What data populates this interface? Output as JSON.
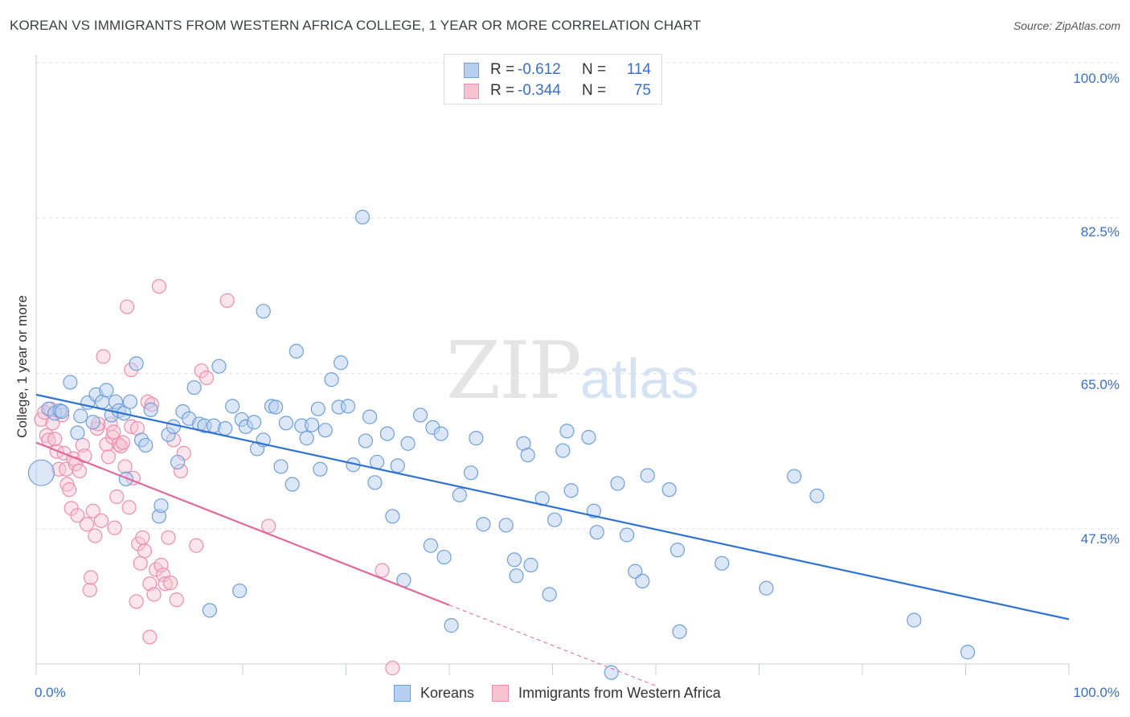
{
  "title": "KOREAN VS IMMIGRANTS FROM WESTERN AFRICA COLLEGE, 1 YEAR OR MORE CORRELATION CHART",
  "source": "Source: ZipAtlas.com",
  "watermark": {
    "zip": "ZIP",
    "atlas": "atlas"
  },
  "legend_top": {
    "rows": [
      {
        "r_label": "R =",
        "r_value": "-0.612",
        "n_label": "N =",
        "n_value": "114"
      },
      {
        "r_label": "R =",
        "r_value": "-0.344",
        "n_label": "N =",
        "n_value": "75"
      }
    ]
  },
  "legend_bottom": [
    "Koreans",
    "Immigrants from Western Africa"
  ],
  "y_axis_label": "College, 1 year or more",
  "y_ticks": [
    "100.0%",
    "82.5%",
    "65.0%",
    "47.5%"
  ],
  "x_ticks": [
    "0.0%",
    "100.0%"
  ],
  "colors": {
    "koreans_fill": "#b7d0f0",
    "koreans_stroke": "#6f9fd8",
    "koreans_line": "#2f72d0",
    "wafrica_fill": "#f7c3d3",
    "wafrica_stroke": "#ec8eae",
    "wafrica_line": "#e0679a",
    "grid": "#dde2ea",
    "tick_text": "#3a6fc4"
  },
  "chart_data": {
    "type": "scatter",
    "title": "KOREAN VS IMMIGRANTS FROM WESTERN AFRICA COLLEGE, 1 YEAR OR MORE CORRELATION CHART",
    "xlabel": "",
    "ylabel": "College, 1 year or more",
    "xlim": [
      0,
      100
    ],
    "ylim": [
      30,
      100
    ],
    "y_gridlines": [
      47.5,
      65.0,
      82.5,
      100.0
    ],
    "series": [
      {
        "name": "Koreans",
        "R": -0.612,
        "N": 114,
        "trend": {
          "x": [
            0,
            100
          ],
          "y": [
            62.6,
            37.3
          ]
        },
        "points": [
          [
            0.5,
            53.8
          ],
          [
            1.2,
            61.0
          ],
          [
            1.8,
            60.5
          ],
          [
            2.3,
            60.8
          ],
          [
            2.5,
            60.7
          ],
          [
            3.3,
            64.0
          ],
          [
            4.0,
            58.3
          ],
          [
            4.3,
            60.2
          ],
          [
            5.0,
            61.7
          ],
          [
            5.5,
            59.5
          ],
          [
            5.8,
            62.6
          ],
          [
            6.4,
            61.8
          ],
          [
            6.8,
            63.1
          ],
          [
            7.3,
            60.3
          ],
          [
            7.7,
            61.8
          ],
          [
            8.0,
            60.8
          ],
          [
            8.5,
            60.5
          ],
          [
            8.7,
            53.1
          ],
          [
            9.1,
            61.8
          ],
          [
            9.7,
            66.1
          ],
          [
            10.2,
            57.5
          ],
          [
            10.6,
            56.9
          ],
          [
            11.1,
            60.9
          ],
          [
            11.9,
            48.9
          ],
          [
            12.1,
            50.1
          ],
          [
            12.8,
            58.1
          ],
          [
            13.3,
            59.0
          ],
          [
            13.7,
            55.0
          ],
          [
            14.2,
            60.7
          ],
          [
            14.8,
            59.9
          ],
          [
            15.3,
            63.4
          ],
          [
            15.8,
            59.3
          ],
          [
            16.3,
            59.1
          ],
          [
            16.8,
            38.3
          ],
          [
            17.2,
            59.1
          ],
          [
            17.7,
            65.8
          ],
          [
            18.3,
            58.8
          ],
          [
            19.0,
            61.3
          ],
          [
            19.7,
            40.5
          ],
          [
            19.9,
            59.8
          ],
          [
            20.3,
            59.0
          ],
          [
            21.1,
            59.5
          ],
          [
            21.4,
            56.5
          ],
          [
            22.0,
            57.5
          ],
          [
            22.0,
            72.0
          ],
          [
            22.8,
            61.3
          ],
          [
            23.2,
            61.2
          ],
          [
            23.7,
            54.5
          ],
          [
            24.2,
            59.4
          ],
          [
            24.8,
            52.5
          ],
          [
            25.2,
            67.5
          ],
          [
            25.7,
            59.1
          ],
          [
            26.2,
            57.7
          ],
          [
            26.7,
            59.2
          ],
          [
            27.3,
            61.0
          ],
          [
            27.5,
            54.2
          ],
          [
            28.0,
            58.6
          ],
          [
            28.6,
            64.3
          ],
          [
            29.3,
            61.2
          ],
          [
            29.5,
            66.2
          ],
          [
            30.2,
            61.3
          ],
          [
            30.7,
            54.7
          ],
          [
            31.6,
            82.6
          ],
          [
            31.9,
            57.4
          ],
          [
            32.3,
            60.1
          ],
          [
            32.8,
            52.7
          ],
          [
            33.0,
            55.0
          ],
          [
            34.0,
            58.2
          ],
          [
            34.5,
            48.9
          ],
          [
            35.0,
            54.6
          ],
          [
            35.6,
            41.7
          ],
          [
            36.0,
            57.1
          ],
          [
            37.2,
            60.3
          ],
          [
            38.2,
            45.6
          ],
          [
            38.4,
            58.9
          ],
          [
            39.2,
            58.2
          ],
          [
            39.5,
            44.3
          ],
          [
            40.2,
            36.6
          ],
          [
            41.0,
            51.3
          ],
          [
            42.1,
            53.8
          ],
          [
            42.6,
            57.7
          ],
          [
            43.3,
            48.0
          ],
          [
            45.5,
            47.9
          ],
          [
            46.3,
            44.0
          ],
          [
            46.5,
            42.2
          ],
          [
            47.2,
            57.1
          ],
          [
            47.6,
            55.8
          ],
          [
            47.9,
            43.4
          ],
          [
            49.0,
            50.9
          ],
          [
            49.7,
            40.1
          ],
          [
            50.2,
            48.5
          ],
          [
            51.0,
            56.3
          ],
          [
            51.4,
            58.5
          ],
          [
            51.8,
            51.8
          ],
          [
            53.5,
            57.8
          ],
          [
            54.0,
            49.5
          ],
          [
            54.3,
            47.1
          ],
          [
            56.3,
            52.6
          ],
          [
            57.2,
            46.8
          ],
          [
            58.0,
            42.7
          ],
          [
            58.7,
            41.6
          ],
          [
            59.2,
            53.5
          ],
          [
            61.3,
            51.9
          ],
          [
            62.1,
            45.1
          ],
          [
            62.3,
            35.9
          ],
          [
            66.4,
            43.6
          ],
          [
            70.7,
            40.8
          ],
          [
            73.4,
            53.4
          ],
          [
            75.6,
            51.2
          ],
          [
            85.0,
            37.2
          ],
          [
            90.2,
            33.6
          ],
          [
            55.7,
            31.3
          ]
        ]
      },
      {
        "name": "Immigrants from Western Africa",
        "R": -0.344,
        "N": 75,
        "trend": {
          "x": [
            0,
            40.0
          ],
          "y": [
            57.2,
            38.9
          ]
        },
        "trend_extension": {
          "x": [
            40.0,
            60.0
          ],
          "y": [
            38.9,
            29.8
          ]
        },
        "points": [
          [
            0.5,
            59.8
          ],
          [
            0.8,
            60.6
          ],
          [
            1.0,
            58.0
          ],
          [
            1.2,
            57.5
          ],
          [
            1.4,
            61.0
          ],
          [
            1.6,
            59.4
          ],
          [
            1.8,
            57.6
          ],
          [
            2.0,
            56.2
          ],
          [
            2.2,
            54.2
          ],
          [
            2.5,
            60.3
          ],
          [
            2.7,
            56.0
          ],
          [
            2.9,
            54.2
          ],
          [
            3.0,
            52.5
          ],
          [
            3.2,
            51.9
          ],
          [
            3.4,
            49.8
          ],
          [
            3.6,
            55.4
          ],
          [
            3.8,
            54.8
          ],
          [
            4.0,
            49.0
          ],
          [
            4.2,
            54.0
          ],
          [
            4.5,
            56.9
          ],
          [
            4.7,
            55.7
          ],
          [
            4.9,
            48.0
          ],
          [
            5.2,
            40.6
          ],
          [
            5.5,
            49.5
          ],
          [
            5.7,
            46.7
          ],
          [
            5.9,
            58.8
          ],
          [
            6.0,
            59.3
          ],
          [
            6.3,
            48.4
          ],
          [
            6.5,
            66.9
          ],
          [
            6.8,
            57.0
          ],
          [
            7.0,
            55.6
          ],
          [
            7.2,
            59.3
          ],
          [
            7.4,
            57.8
          ],
          [
            7.6,
            47.6
          ],
          [
            7.8,
            51.1
          ],
          [
            8.0,
            57.0
          ],
          [
            8.2,
            56.8
          ],
          [
            8.4,
            57.2
          ],
          [
            8.6,
            54.5
          ],
          [
            8.8,
            72.5
          ],
          [
            9.0,
            49.9
          ],
          [
            9.2,
            59.0
          ],
          [
            9.4,
            53.2
          ],
          [
            9.7,
            39.3
          ],
          [
            9.9,
            45.8
          ],
          [
            10.1,
            43.6
          ],
          [
            10.3,
            46.5
          ],
          [
            10.5,
            45.0
          ],
          [
            10.8,
            61.8
          ],
          [
            11.0,
            41.3
          ],
          [
            11.2,
            61.5
          ],
          [
            11.4,
            40.1
          ],
          [
            11.6,
            42.9
          ],
          [
            11.9,
            74.8
          ],
          [
            12.1,
            43.4
          ],
          [
            12.3,
            42.3
          ],
          [
            12.5,
            41.3
          ],
          [
            12.8,
            46.5
          ],
          [
            13.0,
            41.4
          ],
          [
            13.3,
            57.5
          ],
          [
            13.6,
            39.5
          ],
          [
            14.0,
            54.0
          ],
          [
            14.3,
            56.0
          ],
          [
            15.5,
            45.6
          ],
          [
            16.0,
            65.3
          ],
          [
            16.5,
            64.5
          ],
          [
            18.5,
            73.2
          ],
          [
            22.5,
            47.8
          ],
          [
            33.5,
            42.8
          ],
          [
            34.5,
            31.8
          ],
          [
            9.2,
            65.4
          ],
          [
            11.0,
            35.3
          ],
          [
            9.8,
            58.8
          ],
          [
            5.3,
            42.0
          ],
          [
            7.5,
            58.4
          ]
        ]
      }
    ]
  }
}
